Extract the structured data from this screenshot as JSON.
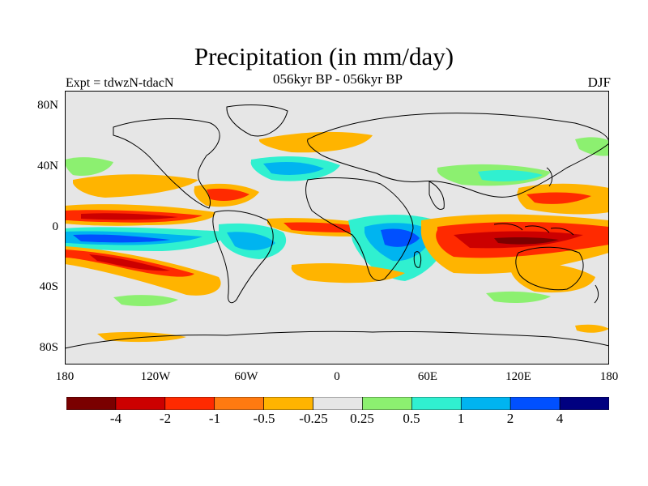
{
  "header": {
    "title": "Precipitation (in mm/day)",
    "subtitle": "056kyr BP - 056kyr BP",
    "left_label": "Expt = tdwzN-tdacN",
    "right_label": "DJF"
  },
  "axes": {
    "lat_labels": [
      "80N",
      "40N",
      "0",
      "40S",
      "80S"
    ],
    "lon_labels": [
      "180",
      "120W",
      "60W",
      "0",
      "60E",
      "120E",
      "180"
    ]
  },
  "colorbar": {
    "labels": [
      "-4",
      "-2",
      "-1",
      "-0.5",
      "-0.25",
      "0.25",
      "0.5",
      "1",
      "2",
      "4"
    ],
    "colors": [
      "#7a0000",
      "#cc0000",
      "#ff2a00",
      "#ff7a10",
      "#ffb400",
      "#e6e6e6",
      "#8cf070",
      "#30f0d0",
      "#00b4f0",
      "#0050ff",
      "#000080"
    ]
  },
  "colors": {
    "land_border": "#000000",
    "background": "#e6e6e6"
  }
}
